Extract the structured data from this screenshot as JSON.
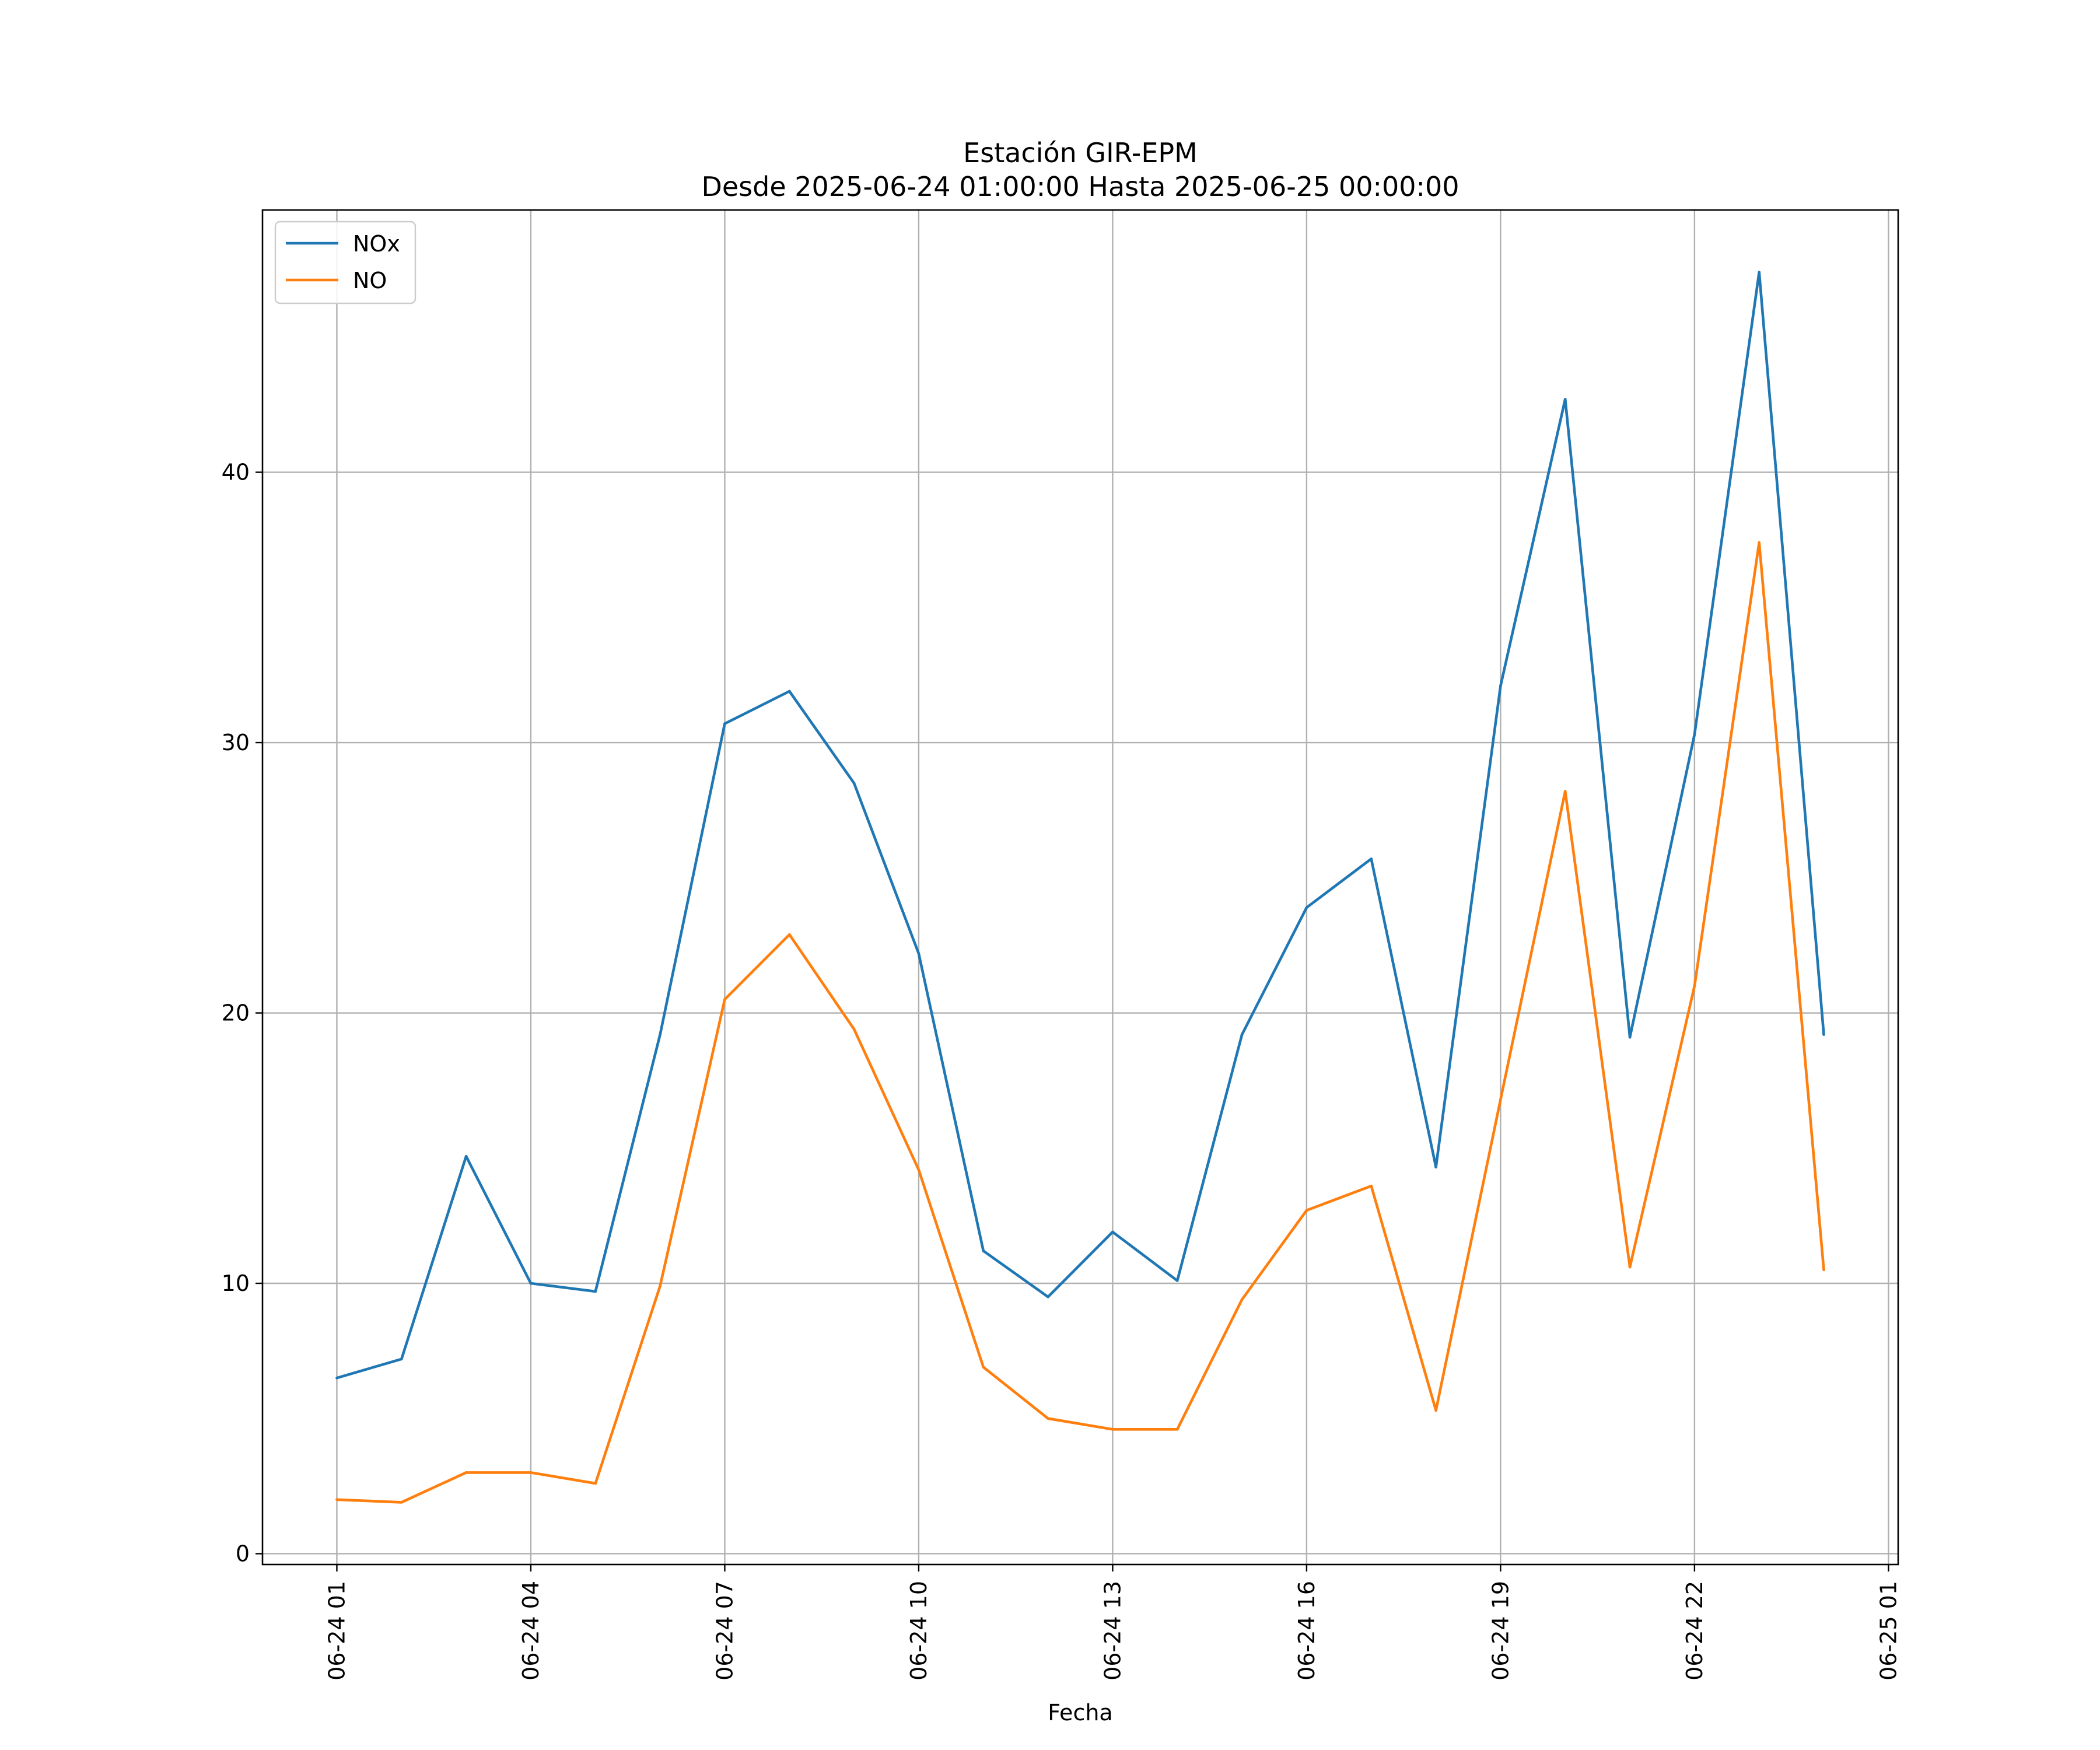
{
  "chart_data": {
    "type": "line",
    "title": "Estación GIR-EPM",
    "subtitle": "Desde 2025-06-24 01:00:00 Hasta 2025-06-25 00:00:00",
    "xlabel": "Fecha",
    "ylabel": "",
    "x": [
      "2025-06-24 01:00",
      "2025-06-24 02:00",
      "2025-06-24 03:00",
      "2025-06-24 04:00",
      "2025-06-24 05:00",
      "2025-06-24 06:00",
      "2025-06-24 07:00",
      "2025-06-24 08:00",
      "2025-06-24 09:00",
      "2025-06-24 10:00",
      "2025-06-24 11:00",
      "2025-06-24 12:00",
      "2025-06-24 13:00",
      "2025-06-24 14:00",
      "2025-06-24 15:00",
      "2025-06-24 16:00",
      "2025-06-24 17:00",
      "2025-06-24 18:00",
      "2025-06-24 19:00",
      "2025-06-24 20:00",
      "2025-06-24 21:00",
      "2025-06-24 22:00",
      "2025-06-24 23:00",
      "2025-06-25 00:00"
    ],
    "series": [
      {
        "name": "NOx",
        "color": "#1f77b4",
        "values": [
          6.5,
          7.2,
          14.7,
          10.0,
          9.7,
          19.2,
          30.7,
          31.9,
          28.5,
          22.2,
          11.2,
          9.5,
          11.9,
          10.1,
          19.2,
          23.9,
          25.7,
          14.3,
          32.1,
          42.7,
          19.1,
          30.3,
          47.4,
          19.2
        ]
      },
      {
        "name": "NO",
        "color": "#ff7f0e",
        "values": [
          2.0,
          1.9,
          3.0,
          3.0,
          2.6,
          9.9,
          20.5,
          22.9,
          19.4,
          14.2,
          6.9,
          5.0,
          4.6,
          4.6,
          9.4,
          12.7,
          13.6,
          5.3,
          16.8,
          28.2,
          10.6,
          21.0,
          37.4,
          10.5
        ]
      }
    ],
    "xlim": [
      "2025-06-23 23:51",
      "2025-06-25 01:09"
    ],
    "ylim": [
      -0.4,
      49.7
    ],
    "yticks": [
      0,
      10,
      20,
      30,
      40
    ],
    "xticks": [
      {
        "at": "2025-06-24 01:00",
        "label": "06-24 01"
      },
      {
        "at": "2025-06-24 04:00",
        "label": "06-24 04"
      },
      {
        "at": "2025-06-24 07:00",
        "label": "06-24 07"
      },
      {
        "at": "2025-06-24 10:00",
        "label": "06-24 10"
      },
      {
        "at": "2025-06-24 13:00",
        "label": "06-24 13"
      },
      {
        "at": "2025-06-24 16:00",
        "label": "06-24 16"
      },
      {
        "at": "2025-06-24 19:00",
        "label": "06-24 19"
      },
      {
        "at": "2025-06-24 22:00",
        "label": "06-24 22"
      },
      {
        "at": "2025-06-25 01:00",
        "label": "06-25 01"
      }
    ],
    "grid": true,
    "legend_position": "upper-left"
  }
}
